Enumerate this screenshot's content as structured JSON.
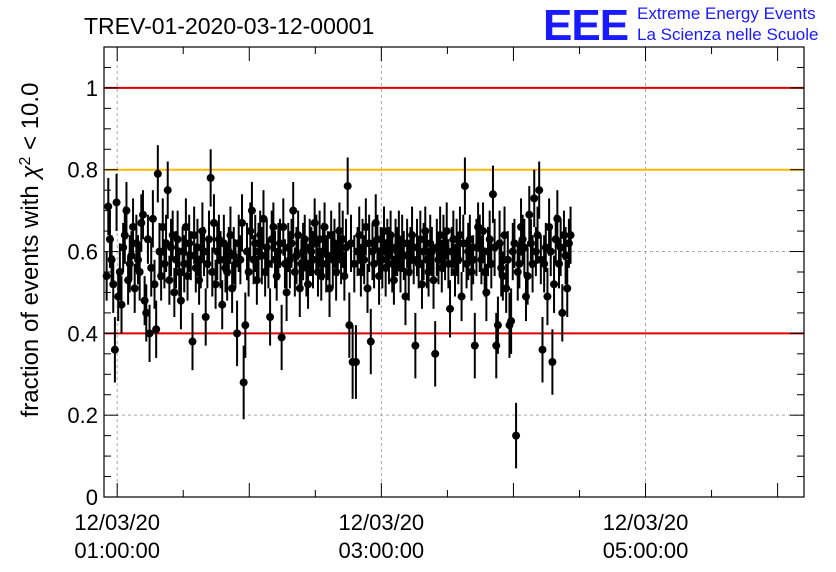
{
  "chart_data": {
    "type": "scatter",
    "title": "TREV-01-2020-03-12-00001",
    "ylabel": "fraction of events with χ² < 10.0",
    "ylabel_main": "fraction of events with ",
    "ylabel_chi": "χ",
    "ylabel_sup": "2",
    "ylabel_tail": " < 10.0",
    "ylim": [
      0,
      1.1
    ],
    "xlim_hours": [
      0.9,
      6.2
    ],
    "y_ticks": [
      {
        "v": 0,
        "label": "0"
      },
      {
        "v": 0.2,
        "label": "0.2"
      },
      {
        "v": 0.4,
        "label": "0.4"
      },
      {
        "v": 0.6,
        "label": "0.6"
      },
      {
        "v": 0.8,
        "label": "0.8"
      },
      {
        "v": 1,
        "label": "1"
      }
    ],
    "x_ticks": [
      {
        "h": 1,
        "date": "12/03/20",
        "time": "01:00:00"
      },
      {
        "h": 3,
        "date": "12/03/20",
        "time": "03:00:00"
      },
      {
        "h": 5,
        "date": "12/03/20",
        "time": "05:00:00"
      }
    ],
    "grid": true,
    "reference_lines": [
      {
        "y": 1.0,
        "color": "#e00000"
      },
      {
        "y": 0.8,
        "color": "#ffb800"
      },
      {
        "y": 0.4,
        "color": "#e00000"
      }
    ],
    "marker_color": "#000000",
    "series": [
      {
        "x_start_hour": 0.92,
        "x_step_hours": 0.0125,
        "values": [
          0.54,
          0.71,
          0.63,
          0.58,
          0.52,
          0.36,
          0.72,
          0.49,
          0.55,
          0.47,
          0.61,
          0.64,
          0.7,
          0.53,
          0.57,
          0.59,
          0.66,
          0.51,
          0.62,
          0.58,
          0.55,
          0.67,
          0.69,
          0.48,
          0.45,
          0.63,
          0.4,
          0.56,
          0.68,
          0.52,
          0.41,
          0.79,
          0.6,
          0.54,
          0.66,
          0.57,
          0.62,
          0.75,
          0.53,
          0.61,
          0.64,
          0.5,
          0.58,
          0.63,
          0.55,
          0.48,
          0.6,
          0.57,
          0.66,
          0.54,
          0.62,
          0.59,
          0.38,
          0.64,
          0.56,
          0.61,
          0.53,
          0.58,
          0.65,
          0.6,
          0.44,
          0.57,
          0.63,
          0.78,
          0.55,
          0.67,
          0.52,
          0.6,
          0.63,
          0.58,
          0.47,
          0.62,
          0.56,
          0.55,
          0.6,
          0.64,
          0.51,
          0.59,
          0.57,
          0.4,
          0.62,
          0.58,
          0.67,
          0.28,
          0.42,
          0.6,
          0.55,
          0.65,
          0.7,
          0.58,
          0.62,
          0.53,
          0.6,
          0.64,
          0.59,
          0.68,
          0.55,
          0.61,
          0.57,
          0.44,
          0.63,
          0.66,
          0.58,
          0.54,
          0.6,
          0.62,
          0.39,
          0.66,
          0.57,
          0.5,
          0.61,
          0.58,
          0.62,
          0.7,
          0.55,
          0.59,
          0.64,
          0.51,
          0.57,
          0.6,
          0.63,
          0.56,
          0.52,
          0.61,
          0.6,
          0.58,
          0.67,
          0.62,
          0.55,
          0.63,
          0.54,
          0.6,
          0.66,
          0.57,
          0.59,
          0.51,
          0.64,
          0.58,
          0.62,
          0.55,
          0.6,
          0.65,
          0.58,
          0.63,
          0.54,
          0.61,
          0.76,
          0.42,
          0.62,
          0.33,
          0.57,
          0.33,
          0.6,
          0.64,
          0.55,
          0.61,
          0.58,
          0.66,
          0.51,
          0.62,
          0.38,
          0.6,
          0.57,
          0.67,
          0.63,
          0.54,
          0.6,
          0.58,
          0.65,
          0.56,
          0.62,
          0.59,
          0.64,
          0.57,
          0.53,
          0.61,
          0.6,
          0.63,
          0.56,
          0.62,
          0.59,
          0.49,
          0.62,
          0.55,
          0.6,
          0.64,
          0.58,
          0.37,
          0.61,
          0.57,
          0.63,
          0.52,
          0.6,
          0.65,
          0.58,
          0.55,
          0.62,
          0.6,
          0.53,
          0.35,
          0.61,
          0.58,
          0.64,
          0.56,
          0.62,
          0.59,
          0.65,
          0.57,
          0.46,
          0.6,
          0.63,
          0.55,
          0.61,
          0.58,
          0.64,
          0.49,
          0.62,
          0.76,
          0.57,
          0.6,
          0.63,
          0.55,
          0.58,
          0.37,
          0.61,
          0.66,
          0.62,
          0.58,
          0.65,
          0.55,
          0.5,
          0.6,
          0.63,
          0.57,
          0.74,
          0.61,
          0.37,
          0.42,
          0.62,
          0.56,
          0.54,
          0.64,
          0.51,
          0.58,
          0.42,
          0.43,
          0.6,
          0.62,
          0.15,
          0.55,
          0.57,
          0.66,
          0.63,
          0.61,
          0.49,
          0.54,
          0.69,
          0.62,
          0.57,
          0.73,
          0.6,
          0.64,
          0.75,
          0.58,
          0.36,
          0.57,
          0.61,
          0.49,
          0.66,
          0.6,
          0.33,
          0.52,
          0.63,
          0.68,
          0.57,
          0.61,
          0.45,
          0.64,
          0.59,
          0.51,
          0.62,
          0.64
        ],
        "errors": [
          0.06,
          0.07,
          0.07,
          0.06,
          0.07,
          0.08,
          0.07,
          0.06,
          0.07,
          0.07,
          0.06,
          0.07,
          0.07,
          0.06,
          0.07,
          0.06,
          0.07,
          0.06,
          0.07,
          0.06,
          0.07,
          0.07,
          0.06,
          0.06,
          0.07,
          0.06,
          0.07,
          0.07,
          0.07,
          0.06,
          0.07,
          0.07,
          0.07,
          0.06,
          0.07,
          0.06,
          0.07,
          0.07,
          0.06,
          0.07,
          0.06,
          0.06,
          0.07,
          0.07,
          0.06,
          0.07,
          0.06,
          0.07,
          0.07,
          0.06,
          0.07,
          0.06,
          0.07,
          0.07,
          0.06,
          0.07,
          0.06,
          0.07,
          0.07,
          0.06,
          0.07,
          0.06,
          0.07,
          0.07,
          0.06,
          0.07,
          0.06,
          0.07,
          0.06,
          0.07,
          0.06,
          0.07,
          0.06,
          0.07,
          0.06,
          0.07,
          0.06,
          0.07,
          0.06,
          0.08,
          0.07,
          0.06,
          0.07,
          0.09,
          0.08,
          0.07,
          0.06,
          0.07,
          0.07,
          0.06,
          0.07,
          0.06,
          0.07,
          0.06,
          0.07,
          0.07,
          0.06,
          0.07,
          0.06,
          0.07,
          0.07,
          0.06,
          0.07,
          0.06,
          0.07,
          0.06,
          0.08,
          0.07,
          0.06,
          0.07,
          0.06,
          0.07,
          0.06,
          0.07,
          0.06,
          0.07,
          0.06,
          0.07,
          0.06,
          0.07,
          0.06,
          0.07,
          0.06,
          0.07,
          0.06,
          0.07,
          0.06,
          0.07,
          0.06,
          0.07,
          0.06,
          0.07,
          0.06,
          0.07,
          0.06,
          0.07,
          0.06,
          0.07,
          0.06,
          0.07,
          0.06,
          0.07,
          0.06,
          0.07,
          0.06,
          0.07,
          0.07,
          0.08,
          0.07,
          0.09,
          0.07,
          0.09,
          0.06,
          0.07,
          0.06,
          0.07,
          0.06,
          0.07,
          0.06,
          0.07,
          0.08,
          0.07,
          0.06,
          0.07,
          0.06,
          0.07,
          0.06,
          0.07,
          0.06,
          0.07,
          0.06,
          0.07,
          0.06,
          0.07,
          0.06,
          0.07,
          0.06,
          0.07,
          0.06,
          0.07,
          0.06,
          0.07,
          0.06,
          0.07,
          0.06,
          0.07,
          0.06,
          0.08,
          0.07,
          0.06,
          0.07,
          0.06,
          0.07,
          0.06,
          0.07,
          0.06,
          0.07,
          0.06,
          0.07,
          0.08,
          0.07,
          0.06,
          0.07,
          0.06,
          0.07,
          0.06,
          0.07,
          0.06,
          0.07,
          0.06,
          0.07,
          0.06,
          0.07,
          0.06,
          0.07,
          0.06,
          0.07,
          0.07,
          0.06,
          0.07,
          0.06,
          0.07,
          0.06,
          0.08,
          0.07,
          0.06,
          0.07,
          0.06,
          0.07,
          0.06,
          0.07,
          0.06,
          0.07,
          0.06,
          0.07,
          0.07,
          0.08,
          0.07,
          0.08,
          0.07,
          0.06,
          0.07,
          0.06,
          0.07,
          0.08,
          0.08,
          0.07,
          0.06,
          0.08,
          0.07,
          0.06,
          0.07,
          0.06,
          0.07,
          0.06,
          0.07,
          0.07,
          0.06,
          0.07,
          0.07,
          0.06,
          0.07,
          0.07,
          0.06,
          0.08,
          0.07,
          0.06,
          0.07,
          0.07,
          0.06,
          0.08,
          0.07,
          0.06,
          0.07,
          0.06,
          0.07,
          0.07,
          0.06,
          0.07,
          0.07,
          0.06,
          0.07
        ]
      }
    ]
  },
  "logo": {
    "letters": "EEE",
    "line1": "Extreme Energy Events",
    "line2": "La Scienza nelle Scuole"
  }
}
